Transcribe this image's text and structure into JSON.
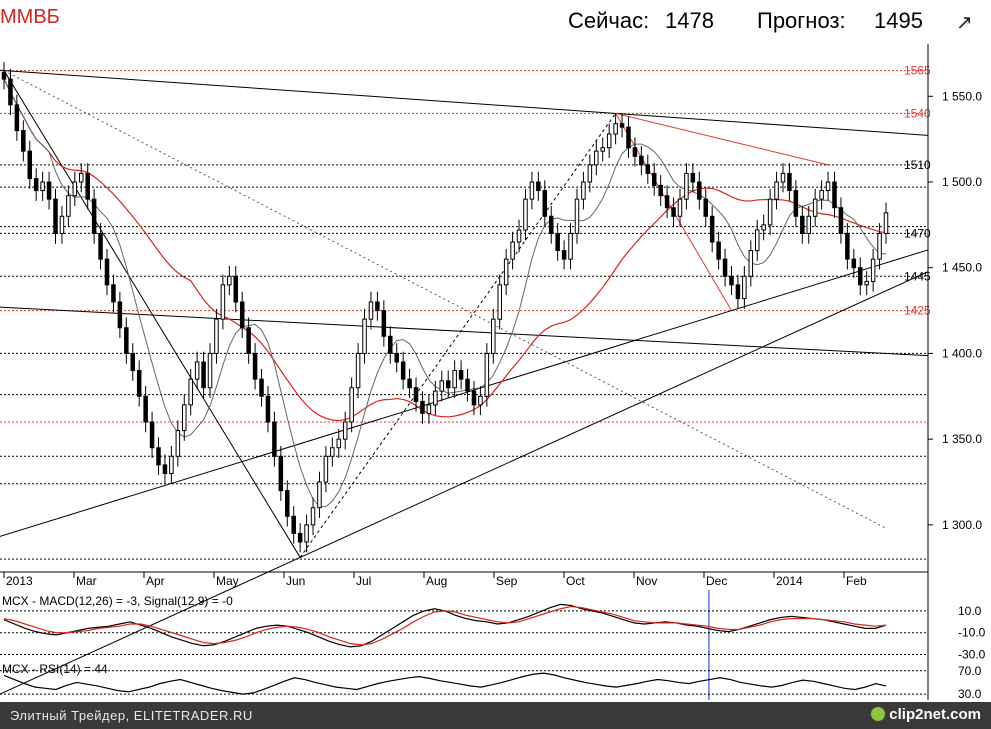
{
  "header": {
    "symbol": "ММВБ",
    "now_label": "Сейчас:",
    "now_value": "1478",
    "forecast_label": "Прогноз:",
    "forecast_value": "1495",
    "expand_icon": "expand-arrow-icon"
  },
  "footer": {
    "text": "Элитный Трейдер, ELITETRADER.RU",
    "brand": "clip2net.com",
    "brand_icon": "clip2net-logo-icon"
  },
  "colors": {
    "price": "#000000",
    "ma_long": "#d9251b",
    "ma_short": "#333333",
    "level_red": "#e23a2e",
    "level_black": "#000000",
    "marker": "#3a55e8"
  },
  "chart_data": [
    {
      "type": "candlestick",
      "title": "ММВБ",
      "ylim": [
        1276,
        1570
      ],
      "y_ticks": [
        "1 550.0",
        "1 500.0",
        "1 450.0",
        "1 400.0",
        "1 350.0",
        "1 300.0"
      ],
      "y_tick_values": [
        1550,
        1500,
        1450,
        1400,
        1350,
        1300
      ],
      "x_labels": [
        "2013",
        "Mar",
        "Apr",
        "May",
        "Jun",
        "Jul",
        "Aug",
        "Sep",
        "Oct",
        "Nov",
        "Dec",
        "2014",
        "Feb"
      ],
      "red_levels": [
        {
          "value": 1565,
          "label": "1565"
        },
        {
          "value": 1540,
          "label": "1540"
        },
        {
          "value": 1425,
          "label": "1425"
        },
        {
          "value": 1360,
          "label": ""
        }
      ],
      "black_levels": [
        {
          "value": 1510,
          "label": "1510"
        },
        {
          "value": 1470,
          "label": "1470"
        },
        {
          "value": 1445,
          "label": "1445"
        },
        {
          "value": 1497,
          "label": ""
        },
        {
          "value": 1474,
          "label": ""
        },
        {
          "value": 1400,
          "label": ""
        },
        {
          "value": 1376,
          "label": ""
        },
        {
          "value": 1340,
          "label": ""
        },
        {
          "value": 1324,
          "label": ""
        },
        {
          "value": 1280,
          "label": ""
        }
      ],
      "key_points": {
        "start": 1565,
        "feb_high": 1515,
        "apr_low": 1323,
        "may_high": 1452,
        "jun_low": 1281,
        "jul_high": 1438,
        "aug_low": 1355,
        "oct_high": 1540,
        "dec_low": 1425,
        "jan_high": 1510,
        "feb_low": 1428,
        "last": 1482
      },
      "series": [
        {
          "name": "",
          "values_close": [
            1560,
            1545,
            1530,
            1518,
            1502,
            1495,
            1500,
            1490,
            1470,
            1480,
            1492,
            1500,
            1505,
            1490,
            1470,
            1455,
            1440,
            1430,
            1415,
            1400,
            1390,
            1375,
            1360,
            1345,
            1335,
            1330,
            1340,
            1355,
            1370,
            1385,
            1395,
            1380,
            1400,
            1420,
            1440,
            1445,
            1430,
            1415,
            1400,
            1385,
            1375,
            1360,
            1340,
            1320,
            1305,
            1295,
            1290,
            1300,
            1310,
            1325,
            1340,
            1345,
            1350,
            1360,
            1380,
            1400,
            1420,
            1430,
            1425,
            1410,
            1400,
            1395,
            1385,
            1380,
            1372,
            1365,
            1370,
            1378,
            1384,
            1380,
            1390,
            1385,
            1378,
            1370,
            1375,
            1400,
            1420,
            1440,
            1455,
            1465,
            1472,
            1490,
            1500,
            1495,
            1480,
            1470,
            1460,
            1455,
            1470,
            1490,
            1500,
            1510,
            1518,
            1520,
            1528,
            1534,
            1532,
            1520,
            1515,
            1510,
            1505,
            1498,
            1492,
            1485,
            1480,
            1490,
            1505,
            1500,
            1490,
            1480,
            1465,
            1455,
            1445,
            1440,
            1432,
            1445,
            1460,
            1472,
            1475,
            1490,
            1500,
            1505,
            1495,
            1480,
            1470,
            1480,
            1490,
            1495,
            1500,
            1485,
            1470,
            1455,
            1450,
            1440,
            1442,
            1455,
            1470,
            1482
          ]
        }
      ]
    },
    {
      "type": "line",
      "title": "MCX - MACD(12,26) = -3, Signal(12,9) = -0",
      "ylim": [
        -35,
        20
      ],
      "y_ticks": [
        "10.0",
        "-10.0",
        "-30.0"
      ],
      "y_tick_values": [
        10,
        -10,
        -30
      ],
      "series": [
        {
          "name": "MACD(12,26)",
          "values": [
            2,
            -2,
            -6,
            -9,
            -11,
            -12,
            -10,
            -8,
            -6,
            -5,
            -4,
            -2,
            0,
            -3,
            -6,
            -10,
            -14,
            -17,
            -20,
            -22,
            -21,
            -18,
            -14,
            -10,
            -6,
            -4,
            -3,
            -4,
            -7,
            -10,
            -14,
            -18,
            -21,
            -23,
            -22,
            -18,
            -12,
            -6,
            0,
            6,
            10,
            12,
            10,
            6,
            3,
            1,
            0,
            -2,
            -1,
            2,
            5,
            9,
            13,
            16,
            15,
            12,
            10,
            8,
            5,
            2,
            -1,
            -2,
            -1,
            0,
            -1,
            -3,
            -4,
            -6,
            -8,
            -9,
            -7,
            -4,
            -1,
            2,
            4,
            5,
            4,
            3,
            2,
            0,
            -2,
            -4,
            -6,
            -6,
            -3
          ]
        },
        {
          "name": "Signal(12,9)",
          "values": [
            3,
            1,
            -2,
            -5,
            -8,
            -10,
            -10,
            -9,
            -8,
            -6,
            -5,
            -4,
            -2,
            -2,
            -4,
            -7,
            -10,
            -13,
            -16,
            -19,
            -20,
            -19,
            -17,
            -14,
            -10,
            -7,
            -5,
            -4,
            -5,
            -7,
            -10,
            -14,
            -17,
            -20,
            -21,
            -20,
            -16,
            -11,
            -6,
            0,
            5,
            9,
            10,
            9,
            6,
            4,
            2,
            0,
            -1,
            0,
            3,
            6,
            9,
            12,
            14,
            13,
            11,
            9,
            7,
            4,
            1,
            0,
            -1,
            -1,
            -1,
            -2,
            -3,
            -4,
            -6,
            -7,
            -7,
            -5,
            -3,
            0,
            2,
            3,
            3,
            3,
            2,
            1,
            0,
            -2,
            -3,
            -4,
            -3
          ]
        }
      ]
    },
    {
      "type": "line",
      "title": "MCX - RSI(14) = 44",
      "ylim": [
        20,
        85
      ],
      "y_ticks": [
        "70.0",
        "30.0"
      ],
      "y_tick_values": [
        70,
        30
      ],
      "series": [
        {
          "name": "RSI(14)",
          "values": [
            62,
            55,
            48,
            42,
            40,
            38,
            45,
            50,
            47,
            44,
            40,
            36,
            34,
            38,
            42,
            48,
            52,
            55,
            50,
            45,
            40,
            36,
            33,
            30,
            32,
            38,
            45,
            52,
            58,
            55,
            50,
            46,
            42,
            40,
            38,
            43,
            48,
            52,
            55,
            58,
            60,
            57,
            53,
            50,
            47,
            44,
            42,
            46,
            50,
            55,
            60,
            64,
            66,
            63,
            58,
            54,
            50,
            47,
            44,
            42,
            45,
            48,
            52,
            55,
            53,
            50,
            48,
            52,
            55,
            58,
            55,
            50,
            47,
            44,
            42,
            45,
            50,
            54,
            52,
            48,
            44,
            40,
            38,
            42,
            48,
            44
          ]
        }
      ]
    }
  ]
}
